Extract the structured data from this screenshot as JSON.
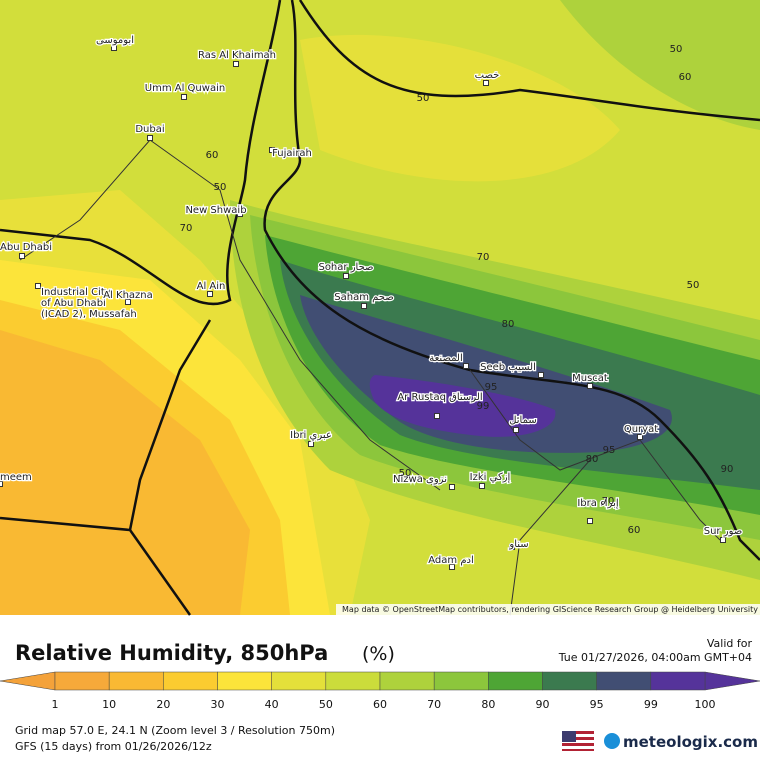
{
  "map": {
    "places": [
      "ابوموسى",
      "Ras Al Khaimah",
      "Umm Al Quwain",
      "Dubai",
      "Fujairah",
      "New Shwaib",
      "Abu Dhabi",
      "Industrial City of Abu Dhabi (ICAD 2), Mussafah",
      "Al Khazna",
      "Al Ain",
      "Sohar صحار",
      "Saham صحم",
      "المصنعة",
      "Seeb السيب",
      "Muscat",
      "Ar Rustaq الرستاق",
      "سمائل",
      "Quryat",
      "Ibri عبري",
      "Nizwa نزوى",
      "Izki إزكي",
      "Ibra إبراء",
      "سناو",
      "Adam ادم",
      "Sur صور",
      "خصب",
      "meem"
    ],
    "contour_labels": [
      "50",
      "60",
      "50",
      "60",
      "50",
      "70",
      "70",
      "50",
      "80",
      "95",
      "99",
      "95",
      "80",
      "90",
      "50",
      "70",
      "60"
    ],
    "attribution": "Map data © OpenStreetMap contributors, rendering GIScience Research Group @ Heidelberg University"
  },
  "footer": {
    "title": "Relative Humidity, 850hPa",
    "unit": "(%)",
    "valid_label": "Valid for",
    "valid_time": "Tue 01/27/2026, 04:00am GMT+04",
    "grid_info": "Grid map 57.0 E, 24.1 N (Zoom level 3 / Resolution 750m)",
    "model_info": "GFS (15 days) from 01/26/2026/12z",
    "brand": "meteologix.com"
  },
  "legend": {
    "ticks": [
      1,
      10,
      20,
      30,
      40,
      50,
      60,
      70,
      80,
      90,
      95,
      99,
      100
    ],
    "under_color": "#f4a23a",
    "over_color": "#55339a",
    "colors": [
      "#f6a93a",
      "#f9b933",
      "#fbcc30",
      "#fce43a",
      "#e4e03a",
      "#cbdc3b",
      "#aed23c",
      "#8cc63c",
      "#4ea535",
      "#3b7a4f",
      "#414e73",
      "#55339a"
    ]
  }
}
